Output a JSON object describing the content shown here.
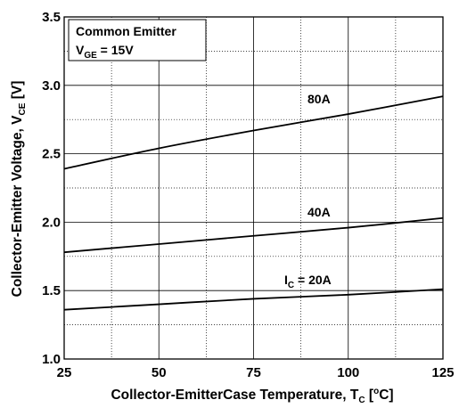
{
  "chart_data": {
    "type": "line",
    "xlim": [
      25,
      125
    ],
    "ylim": [
      1.0,
      3.5
    ],
    "xticks": [
      "25",
      "50",
      "75",
      "100",
      "125"
    ],
    "yticks": [
      "1.0",
      "1.5",
      "2.0",
      "2.5",
      "3.0",
      "3.5"
    ],
    "xlabel": {
      "main": "Collector-EmitterCase Temperature, T",
      "sub": "C",
      "tail_open": " [",
      "sup": "o",
      "tail_close": "C]"
    },
    "ylabel": {
      "main": "Collector-Emitter Voltage, V",
      "sub": "CE",
      "tail": " [V]"
    },
    "legend": {
      "line1": "Common Emitter",
      "line2_main": "V",
      "line2_sub": "GE",
      "line2_tail": " = 15V",
      "position": "top-left"
    },
    "grid": true,
    "series": [
      {
        "name": "80A",
        "x": [
          25,
          50,
          75,
          100,
          125
        ],
        "values": [
          2.39,
          2.54,
          2.67,
          2.79,
          2.92
        ]
      },
      {
        "name": "40A",
        "x": [
          25,
          50,
          75,
          100,
          125
        ],
        "values": [
          1.78,
          1.84,
          1.9,
          1.96,
          2.03
        ]
      },
      {
        "name_main": "I",
        "name_sub": "C",
        "name_tail": " = 20A",
        "x": [
          25,
          50,
          75,
          100,
          125
        ],
        "values": [
          1.36,
          1.4,
          1.44,
          1.47,
          1.51
        ]
      }
    ]
  }
}
